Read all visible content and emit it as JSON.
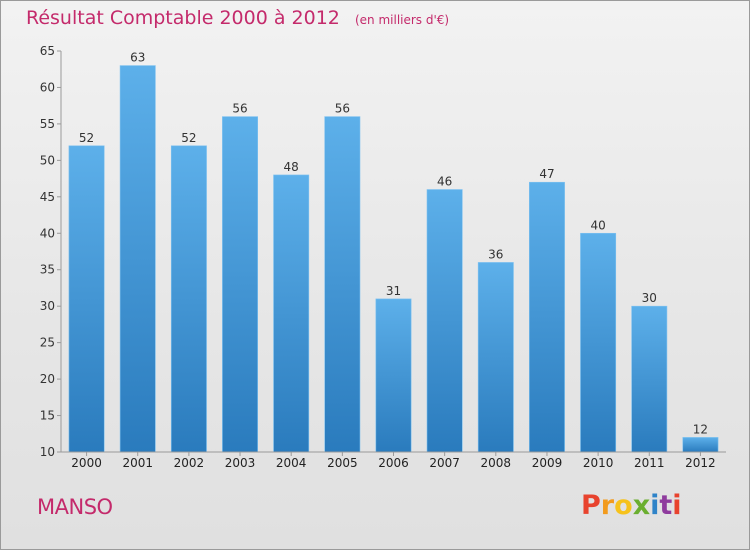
{
  "header": {
    "title": "Résultat Comptable 2000 à 2012",
    "subtitle": "(en milliers d'€)"
  },
  "footer": {
    "commune": "MANSO",
    "logo_text": "Proxiti"
  },
  "colors": {
    "title": "#c42a6b",
    "bar_top": "#5db0ea",
    "bar_bottom": "#2a7bbd",
    "logo_letters": [
      "#e8432e",
      "#f29b1d",
      "#f6c21c",
      "#6aae2f",
      "#2f83c8",
      "#8f3c9e",
      "#e8432e"
    ]
  },
  "chart_data": {
    "type": "bar",
    "categories": [
      "2000",
      "2001",
      "2002",
      "2003",
      "2004",
      "2005",
      "2006",
      "2007",
      "2008",
      "2009",
      "2010",
      "2011",
      "2012"
    ],
    "values": [
      52,
      63,
      52,
      56,
      48,
      56,
      31,
      46,
      36,
      47,
      40,
      30,
      12
    ],
    "ylim": [
      10,
      65
    ],
    "yticks": [
      10,
      15,
      20,
      25,
      30,
      35,
      40,
      45,
      50,
      55,
      60,
      65
    ],
    "grid": false,
    "legend": "none",
    "data_labels": true
  }
}
